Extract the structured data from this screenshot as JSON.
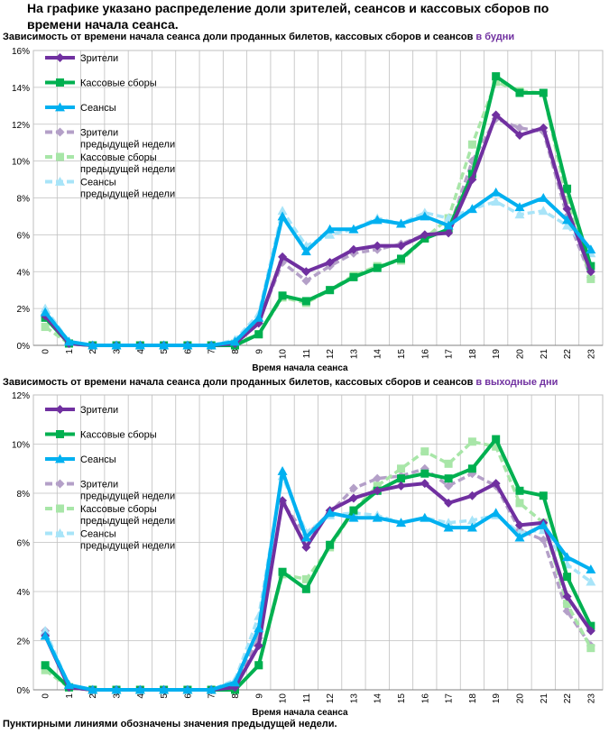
{
  "page_title": "На графике указано распределение доли зрителей, сеансов и кассовых сборов по времени начала сеанса.",
  "footnote": "Пунктирными линиями обозначены значения предыдущей недели.",
  "colors": {
    "viewers": "#7030a0",
    "box_office": "#00b050",
    "sessions": "#00b0f0",
    "viewers_prev": "#b4a0c8",
    "box_office_prev": "#a8e6a8",
    "sessions_prev": "#a8e4f8",
    "grid": "#bfbfbf",
    "accent": "#7030a0"
  },
  "chart_data": [
    {
      "type": "line",
      "title": "Зависимость от времени начала сеанса доли проданных билетов, кассовых сборов и сеансов",
      "title_highlight": "в будни",
      "xlabel": "Время начала сеанса",
      "ylabel": "",
      "categories": [
        "0",
        "1",
        "2",
        "3",
        "4",
        "5",
        "6",
        "7",
        "8",
        "9",
        "10",
        "11",
        "12",
        "13",
        "14",
        "15",
        "16",
        "17",
        "18",
        "19",
        "20",
        "21",
        "22",
        "23"
      ],
      "ylim": [
        0,
        16
      ],
      "yticks": [
        0,
        2,
        4,
        6,
        8,
        10,
        12,
        14,
        16
      ],
      "ytick_labels": [
        "0%",
        "2%",
        "4%",
        "6%",
        "8%",
        "10%",
        "12%",
        "14%",
        "16%"
      ],
      "legend_position": "top-left",
      "series": [
        {
          "name": "Зрители",
          "style": "solid",
          "color_key": "viewers",
          "values": [
            1.6,
            0.1,
            0,
            0,
            0,
            0,
            0,
            0,
            0.1,
            1.2,
            4.8,
            4.0,
            4.5,
            5.2,
            5.4,
            5.4,
            6.0,
            6.1,
            9.0,
            12.5,
            11.4,
            11.8,
            7.4,
            4.0
          ]
        },
        {
          "name": "Кассовые сборы",
          "style": "solid",
          "color_key": "box_office",
          "values": [
            1.5,
            0.1,
            0,
            0,
            0,
            0,
            0,
            0,
            0,
            0.6,
            2.7,
            2.4,
            3.0,
            3.7,
            4.2,
            4.7,
            5.8,
            6.3,
            9.3,
            14.6,
            13.7,
            13.7,
            8.5,
            4.3
          ]
        },
        {
          "name": "Сеансы",
          "style": "solid",
          "color_key": "sessions",
          "values": [
            1.8,
            0.2,
            0,
            0,
            0,
            0,
            0,
            0,
            0.2,
            1.5,
            7.0,
            5.1,
            6.3,
            6.3,
            6.8,
            6.6,
            7.0,
            6.5,
            7.4,
            8.3,
            7.5,
            8.0,
            6.8,
            5.2
          ]
        },
        {
          "name": "Зрители предыдущей недели",
          "style": "dashed",
          "color_key": "viewers_prev",
          "values": [
            1.5,
            0.1,
            0,
            0,
            0,
            0,
            0,
            0,
            0.2,
            1.3,
            4.5,
            3.5,
            4.3,
            5.0,
            5.2,
            5.5,
            6.0,
            6.2,
            10.0,
            12.3,
            11.8,
            11.6,
            7.0,
            3.7
          ]
        },
        {
          "name": "Кассовые сборы предыдущей недели",
          "style": "dashed",
          "color_key": "box_office_prev",
          "values": [
            1.0,
            0.1,
            0,
            0,
            0,
            0,
            0,
            0,
            0.1,
            0.6,
            2.6,
            2.3,
            3.0,
            3.8,
            4.3,
            4.6,
            5.8,
            6.9,
            10.9,
            14.3,
            13.8,
            13.7,
            7.9,
            3.6
          ]
        },
        {
          "name": "Сеансы предыдущей недели",
          "style": "dashed",
          "color_key": "sessions_prev",
          "values": [
            2.0,
            0.2,
            0,
            0,
            0,
            0,
            0,
            0,
            0.3,
            1.7,
            7.3,
            5.4,
            6.0,
            6.3,
            6.9,
            6.6,
            7.2,
            6.9,
            7.4,
            7.8,
            7.1,
            7.3,
            6.5,
            5.0
          ]
        }
      ]
    },
    {
      "type": "line",
      "title": "Зависимость от времени начала сеанса доли проданных билетов, кассовых сборов и сеансов",
      "title_highlight": "в выходные дни",
      "xlabel": "Время начала сеанса",
      "ylabel": "",
      "categories": [
        "0",
        "1",
        "2",
        "3",
        "4",
        "5",
        "6",
        "7",
        "8",
        "9",
        "10",
        "11",
        "12",
        "13",
        "14",
        "15",
        "16",
        "17",
        "18",
        "19",
        "20",
        "21",
        "22",
        "23"
      ],
      "ylim": [
        0,
        12
      ],
      "yticks": [
        0,
        2,
        4,
        6,
        8,
        10,
        12
      ],
      "ytick_labels": [
        "0%",
        "2%",
        "4%",
        "6%",
        "8%",
        "10%",
        "12%"
      ],
      "legend_position": "top-left",
      "series": [
        {
          "name": "Зрители",
          "style": "solid",
          "color_key": "viewers",
          "values": [
            2.2,
            0.1,
            0,
            0,
            0,
            0,
            0,
            0,
            0.1,
            1.8,
            7.7,
            5.8,
            7.3,
            7.8,
            8.1,
            8.3,
            8.4,
            7.6,
            7.9,
            8.4,
            6.7,
            6.8,
            3.8,
            2.4
          ]
        },
        {
          "name": "Кассовые сборы",
          "style": "solid",
          "color_key": "box_office",
          "values": [
            1.0,
            0.1,
            0,
            0,
            0,
            0,
            0,
            0,
            0,
            1.0,
            4.8,
            4.1,
            5.9,
            7.3,
            8.1,
            8.6,
            8.8,
            8.6,
            9.0,
            10.2,
            8.1,
            7.9,
            4.6,
            2.6
          ]
        },
        {
          "name": "Сеансы",
          "style": "solid",
          "color_key": "sessions",
          "values": [
            2.2,
            0.2,
            0,
            0,
            0,
            0,
            0,
            0,
            0.3,
            2.5,
            8.9,
            6.2,
            7.2,
            7.0,
            7.0,
            6.8,
            7.0,
            6.6,
            6.6,
            7.2,
            6.2,
            6.7,
            5.4,
            4.9
          ]
        },
        {
          "name": "Зрители предыдущей недели",
          "style": "dashed",
          "color_key": "viewers_prev",
          "values": [
            2.4,
            0.1,
            0,
            0,
            0,
            0,
            0,
            0,
            0.2,
            2.1,
            7.6,
            6.3,
            7.2,
            8.2,
            8.6,
            8.7,
            9.0,
            8.3,
            8.8,
            8.3,
            6.5,
            6.1,
            3.2,
            1.8
          ]
        },
        {
          "name": "Кассовые сборы предыдущей недели",
          "style": "dashed",
          "color_key": "box_office_prev",
          "values": [
            0.8,
            0.1,
            0,
            0,
            0,
            0,
            0,
            0,
            0,
            1.0,
            4.7,
            4.5,
            5.8,
            7.3,
            8.3,
            9.0,
            9.7,
            9.2,
            10.1,
            9.9,
            7.6,
            6.8,
            3.5,
            1.7
          ]
        },
        {
          "name": "Сеансы предыдущей недели",
          "style": "dashed",
          "color_key": "sessions_prev",
          "values": [
            2.4,
            0.2,
            0,
            0,
            0,
            0,
            0,
            0,
            0.4,
            3.0,
            8.7,
            6.4,
            7.1,
            7.2,
            7.1,
            6.8,
            7.0,
            6.8,
            6.9,
            7.1,
            6.4,
            6.5,
            5.1,
            4.4
          ]
        }
      ]
    }
  ]
}
